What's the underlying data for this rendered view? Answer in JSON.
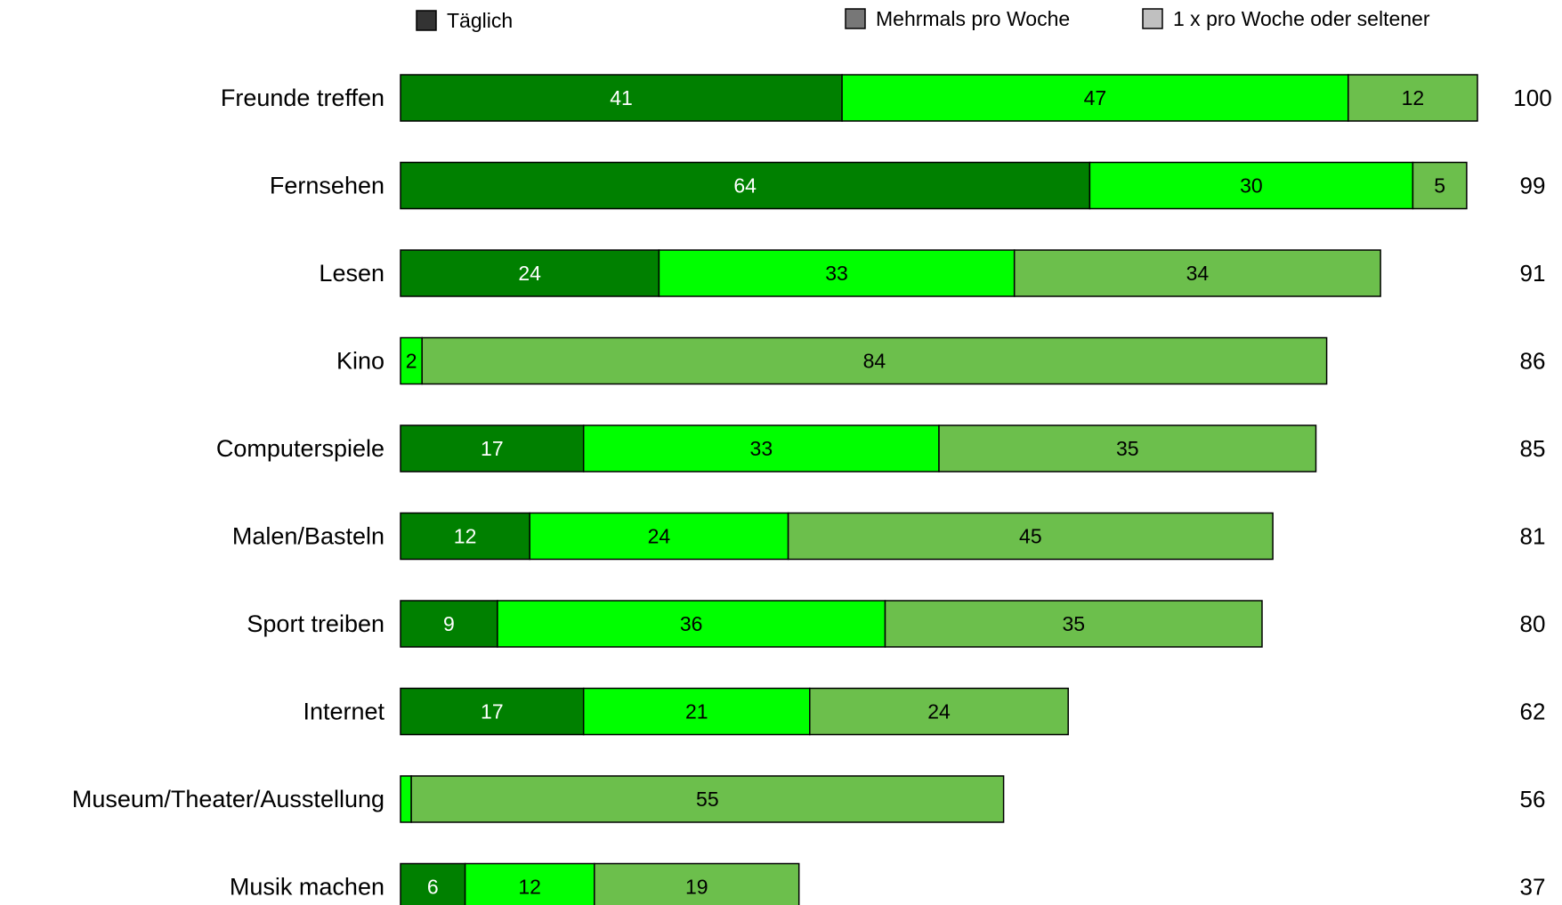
{
  "chart_data": {
    "type": "bar",
    "orientation": "horizontal",
    "stacked": true,
    "categories": [
      "Freunde treffen",
      "Fernsehen",
      "Lesen",
      "Kino",
      "Computerspiele",
      "Malen/Basteln",
      "Sport treiben",
      "Internet",
      "Museum/Theater/Ausstellung",
      "Musik machen"
    ],
    "series": [
      {
        "name": "Täglich",
        "values": [
          41,
          64,
          24,
          0,
          17,
          12,
          9,
          17,
          0,
          6
        ],
        "color": "#008000",
        "label_color": "#ffffff"
      },
      {
        "name": "Mehrmals pro Woche",
        "values": [
          47,
          30,
          33,
          2,
          33,
          24,
          36,
          21,
          1,
          12
        ],
        "color": "#00ff00",
        "label_color": "#000000"
      },
      {
        "name": "1 x pro Woche oder seltener",
        "values": [
          12,
          5,
          34,
          84,
          35,
          45,
          35,
          24,
          55,
          19
        ],
        "color": "#6cbf4c",
        "label_color": "#000000"
      }
    ],
    "totals": [
      100,
      99,
      91,
      86,
      85,
      81,
      80,
      62,
      56,
      37
    ],
    "legend_swatch_colors": [
      "#333333",
      "#777777",
      "#c0c0c0"
    ],
    "legend_position": "top",
    "xlim": [
      0,
      100
    ],
    "grid": false,
    "title": "",
    "xlabel": "",
    "ylabel": ""
  }
}
